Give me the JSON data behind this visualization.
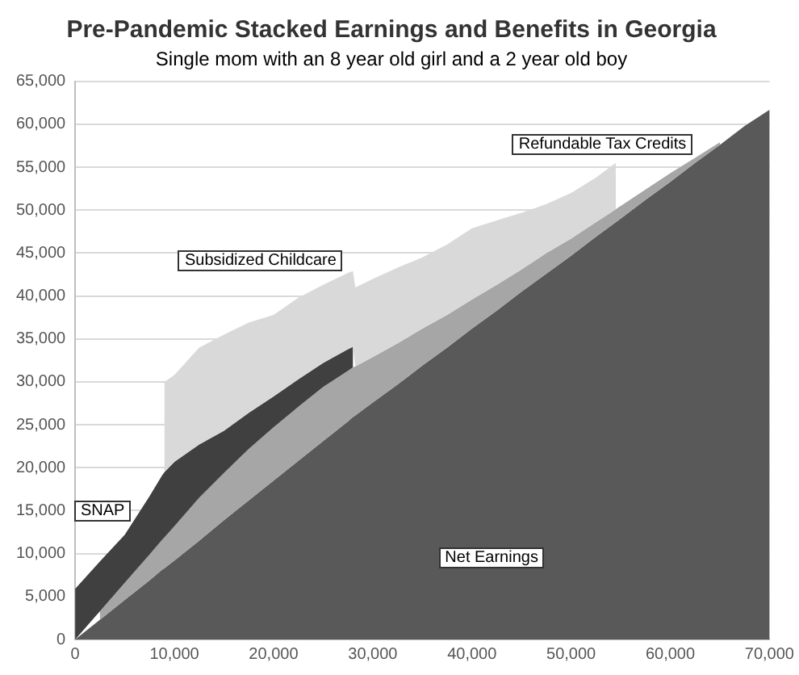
{
  "chart_data": {
    "type": "area",
    "stacked": true,
    "title": "Pre-Pandemic Stacked Earnings and Benefits in Georgia",
    "subtitle": "Single mom with an 8 year old girl and a 2 year old boy",
    "x": [
      0,
      2500,
      5000,
      7500,
      8750,
      9000,
      10000,
      12500,
      15000,
      17500,
      20000,
      22500,
      25000,
      27500,
      28000,
      28250,
      30000,
      32500,
      35000,
      37500,
      40000,
      42500,
      45000,
      47500,
      50000,
      52500,
      54500,
      54750,
      57500,
      60000,
      62500,
      65000,
      67500,
      70000
    ],
    "series": [
      {
        "name": "Net Earnings",
        "color": "#595959",
        "values": [
          0,
          2300,
          4600,
          6900,
          8100,
          8300,
          9200,
          11500,
          13900,
          16200,
          18500,
          20800,
          23100,
          25400,
          25900,
          26100,
          27600,
          29700,
          31900,
          34000,
          36200,
          38300,
          40500,
          42600,
          44700,
          46900,
          48600,
          48800,
          51200,
          53300,
          55500,
          57600,
          59800,
          61700
        ]
      },
      {
        "name": "Refundable Tax Credits",
        "color": "#a6a6a6",
        "values": [
          null,
          1000,
          2000,
          3000,
          3500,
          3600,
          4000,
          5000,
          5500,
          6000,
          6200,
          6300,
          6300,
          5900,
          5800,
          5700,
          5300,
          4800,
          4300,
          3800,
          3400,
          3000,
          2600,
          2400,
          2000,
          1700,
          1500,
          1500,
          1200,
          1000,
          600,
          300,
          null,
          null
        ]
      },
      {
        "name": "SNAP",
        "color": "#404040",
        "values": [
          5900,
          5800,
          5600,
          6800,
          7500,
          7600,
          7500,
          6200,
          4900,
          4200,
          3600,
          3200,
          2800,
          2500,
          2400,
          null,
          null,
          null,
          null,
          null,
          null,
          null,
          null,
          null,
          null,
          null,
          null,
          null,
          null,
          null,
          null,
          null,
          null,
          null
        ]
      },
      {
        "name": "Subsidized Childcare",
        "color": "#d9d9d9",
        "values": [
          null,
          null,
          null,
          null,
          null,
          10500,
          10100,
          11300,
          11200,
          10500,
          9500,
          9500,
          9100,
          8900,
          8800,
          9200,
          9100,
          8800,
          8300,
          8200,
          8300,
          7500,
          6600,
          5700,
          5300,
          5200,
          5400,
          null,
          null,
          null,
          null,
          null,
          null,
          null
        ]
      }
    ],
    "xlim": [
      0,
      70000
    ],
    "xticks": [
      0,
      {
        "value": 10000,
        "label": "10,000"
      },
      {
        "value": 20000,
        "label": "20,000"
      },
      {
        "value": 30000,
        "label": "30,000"
      },
      {
        "value": 40000,
        "label": "40,000"
      },
      {
        "value": 50000,
        "label": "50,000"
      },
      {
        "value": 60000,
        "label": "60,000"
      },
      {
        "value": 70000,
        "label": "70,000"
      }
    ],
    "ylim": [
      0,
      65000
    ],
    "yticks": [
      0,
      {
        "value": 5000,
        "label": "5,000"
      },
      {
        "value": 10000,
        "label": "10,000"
      },
      {
        "value": 15000,
        "label": "15,000"
      },
      {
        "value": 20000,
        "label": "20,000"
      },
      {
        "value": 25000,
        "label": "25,000"
      },
      {
        "value": 30000,
        "label": "30,000"
      },
      {
        "value": 35000,
        "label": "35,000"
      },
      {
        "value": 40000,
        "label": "40,000"
      },
      {
        "value": 45000,
        "label": "45,000"
      },
      {
        "value": 50000,
        "label": "50,000"
      },
      {
        "value": 55000,
        "label": "55,000"
      },
      {
        "value": 60000,
        "label": "60,000"
      },
      {
        "value": 65000,
        "label": "65,000"
      }
    ],
    "grid": "y",
    "legend": false
  }
}
